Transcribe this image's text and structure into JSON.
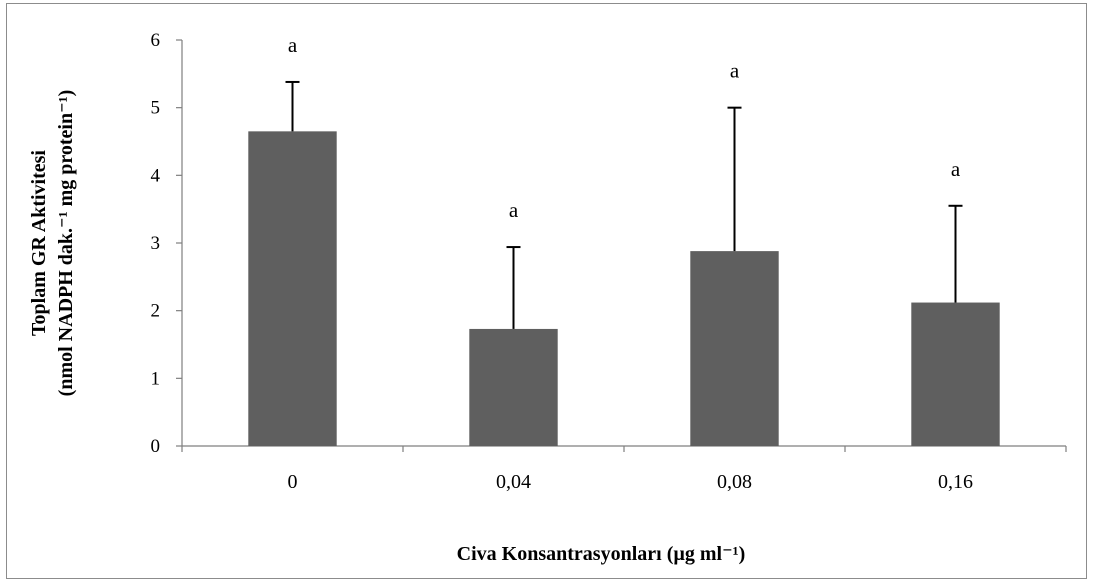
{
  "chart_data": {
    "type": "bar",
    "categories": [
      "0",
      "0,04",
      "0,08",
      "0,16"
    ],
    "values": [
      4.65,
      1.73,
      2.88,
      2.12
    ],
    "error_upper": [
      5.38,
      2.94,
      5.0,
      3.55
    ],
    "annotations": [
      "a",
      "a",
      "a",
      "a"
    ],
    "ylim": [
      0,
      6
    ],
    "yticks": [
      "0",
      "1",
      "2",
      "3",
      "4",
      "5",
      "6"
    ],
    "xlabel": "Civa Konsantrasyonları  (µg ml⁻¹)",
    "ylabel_line1": "Toplam GR Aktivitesi",
    "ylabel_line2": "(nmol NADPH dak.⁻¹ mg protein⁻¹)",
    "bar_color": "#5f5f5f",
    "grid": false,
    "legend": "none"
  }
}
